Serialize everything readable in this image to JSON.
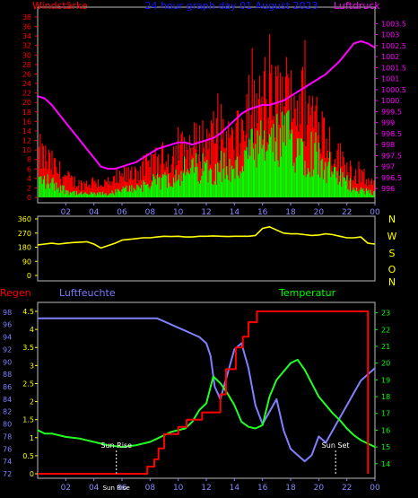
{
  "chart_data": [
    {
      "type": "bar",
      "title": "24 hour graph day  01 August 2023",
      "left_axis_label": "Windstärke",
      "right_axis_label": "Luftdruck",
      "left_ticks": [
        "0",
        "2",
        "4",
        "6",
        "8",
        "10",
        "12",
        "14",
        "16",
        "18",
        "20",
        "22",
        "24",
        "26",
        "28",
        "30",
        "32",
        "34",
        "36",
        "38"
      ],
      "left_range": [
        0,
        38
      ],
      "right_ticks": [
        "996",
        "996.5",
        "997",
        "997.5",
        "998",
        "998.5",
        "999",
        "999.5",
        "1000",
        "1000.5",
        "1001",
        "1001.5",
        "1002",
        "1002.5",
        "1003",
        "1003.5"
      ],
      "right_range": [
        995.6,
        1003.8
      ],
      "x_ticks": [
        "02",
        "04",
        "06",
        "08",
        "10",
        "12",
        "14",
        "16",
        "18",
        "20",
        "22",
        "00"
      ],
      "x_range": [
        0,
        24
      ],
      "series": [
        {
          "name": "Windstärke",
          "color": "#ff0000"
        },
        {
          "name": "Windstärke",
          "color": "#00ff00"
        },
        {
          "name": "Luftdruck",
          "color": "#ff00ff"
        }
      ],
      "gust_envelope": {
        "x": [
          0,
          1,
          2,
          3,
          4,
          5,
          6,
          7,
          8,
          9,
          10,
          11,
          12,
          13,
          14,
          15,
          16,
          17,
          18,
          19,
          20,
          21,
          22,
          23,
          24
        ],
        "y": [
          14,
          10,
          6,
          4,
          5,
          4,
          6,
          8,
          10,
          12,
          14,
          16,
          18,
          20,
          16,
          26,
          28,
          30,
          32,
          28,
          24,
          14,
          10,
          6,
          4
        ]
      },
      "mean_envelope": {
        "x": [
          0,
          1,
          2,
          3,
          4,
          5,
          6,
          7,
          8,
          9,
          10,
          11,
          12,
          13,
          14,
          15,
          16,
          17,
          18,
          19,
          20,
          21,
          22,
          23,
          24
        ],
        "y": [
          5,
          4,
          2,
          1,
          1,
          1,
          2,
          3,
          4,
          5,
          7,
          8,
          8,
          9,
          7,
          12,
          14,
          15,
          17,
          14,
          12,
          7,
          4,
          2,
          1
        ]
      },
      "pressure": {
        "x": [
          0,
          0.5,
          1,
          1.5,
          2,
          2.5,
          3,
          3.5,
          4,
          4.5,
          5,
          5.5,
          6,
          6.5,
          7,
          7.5,
          8,
          8.5,
          9,
          9.5,
          10,
          10.5,
          11,
          11.5,
          12,
          12.5,
          13,
          13.5,
          14,
          14.5,
          15,
          15.5,
          16,
          16.5,
          17,
          17.5,
          18,
          18.5,
          19,
          19.5,
          20,
          20.5,
          21,
          21.5,
          22,
          22.5,
          23,
          23.5,
          24
        ],
        "y": [
          1000.2,
          1000.1,
          999.8,
          999.4,
          999.0,
          998.6,
          998.2,
          997.8,
          997.4,
          997.0,
          996.9,
          996.9,
          997.0,
          997.1,
          997.2,
          997.4,
          997.6,
          997.8,
          997.9,
          998.0,
          998.1,
          998.1,
          998.0,
          998.1,
          998.2,
          998.3,
          998.5,
          998.8,
          999.1,
          999.4,
          999.6,
          999.7,
          999.8,
          999.8,
          999.9,
          1000.0,
          1000.2,
          1000.4,
          1000.6,
          1000.8,
          1001.0,
          1001.2,
          1001.5,
          1001.8,
          1002.2,
          1002.6,
          1002.7,
          1002.6,
          1002.4
        ]
      }
    },
    {
      "type": "line",
      "right_labels": [
        "N",
        "W",
        "S",
        "O",
        "N"
      ],
      "left_ticks": [
        "0",
        "90",
        "180",
        "270",
        "360"
      ],
      "left_range": [
        0,
        360
      ],
      "series": [
        {
          "name": "",
          "color": "#ffff00",
          "x": [
            0,
            0.5,
            1,
            1.5,
            2,
            2.5,
            3,
            3.5,
            4,
            4.5,
            5,
            5.5,
            6,
            6.5,
            7,
            7.5,
            8,
            8.5,
            9,
            9.5,
            10,
            10.5,
            11,
            11.5,
            12,
            12.5,
            13,
            13.5,
            14,
            14.5,
            15,
            15.5,
            16,
            16.5,
            17,
            17.5,
            18,
            18.5,
            19,
            19.5,
            20,
            20.5,
            21,
            21.5,
            22,
            22.5,
            23,
            23.5,
            24
          ],
          "y": [
            195,
            200,
            205,
            200,
            205,
            210,
            212,
            215,
            200,
            175,
            190,
            205,
            225,
            230,
            235,
            240,
            240,
            245,
            250,
            248,
            250,
            245,
            245,
            250,
            250,
            252,
            250,
            248,
            250,
            250,
            250,
            255,
            300,
            310,
            290,
            270,
            265,
            265,
            260,
            255,
            258,
            265,
            260,
            250,
            240,
            240,
            245,
            205,
            200
          ]
        }
      ]
    },
    {
      "type": "line",
      "left_axis_label": "Regen",
      "humidity_axis_label": "Luftfeuchte",
      "right_axis_label": "Temperatur",
      "rain_ticks": [
        "0",
        "0.5",
        "1",
        "1.5",
        "2",
        "2.5",
        "3",
        "3.5",
        "4",
        "4.5"
      ],
      "rain_range": [
        0,
        4.6
      ],
      "humidity_ticks": [
        "72",
        "74",
        "76",
        "78",
        "80",
        "82",
        "84",
        "86",
        "88",
        "90",
        "92",
        "94",
        "96",
        "98"
      ],
      "humidity_range": [
        72,
        98.7
      ],
      "temp_ticks": [
        "14",
        "15",
        "16",
        "17",
        "18",
        "19",
        "20",
        "21",
        "22",
        "23"
      ],
      "temp_range": [
        13.4,
        23.3
      ],
      "x_ticks": [
        "02",
        "04",
        "06",
        "08",
        "10",
        "12",
        "14",
        "16",
        "18",
        "20",
        "22",
        "00"
      ],
      "annotations": [
        {
          "text": "Sun Rise",
          "x": 5.6
        },
        {
          "text": "Sun Set",
          "x": 21.2
        },
        {
          "text": "Sun Rise",
          "x": 5.6
        }
      ],
      "series": [
        {
          "name": "Regen",
          "color": "#ff0000",
          "x": [
            0,
            7.8,
            7.8,
            8.3,
            8.3,
            8.6,
            8.6,
            9,
            9,
            10,
            10,
            10.6,
            10.6,
            11.7,
            11.7,
            13,
            13,
            13.4,
            13.4,
            14.1,
            14.1,
            14.6,
            14.6,
            15,
            15,
            15.6,
            15.6,
            23.5,
            23.5
          ],
          "y": [
            0,
            0,
            0.2,
            0.2,
            0.4,
            0.4,
            0.7,
            0.7,
            1.1,
            1.1,
            1.3,
            1.3,
            1.5,
            1.5,
            1.7,
            1.7,
            2.2,
            2.2,
            2.9,
            2.9,
            3.5,
            3.5,
            3.8,
            3.8,
            4.2,
            4.2,
            4.5,
            4.5,
            0
          ]
        },
        {
          "name": "Luftfeuchte",
          "color": "#8080ff",
          "x": [
            0,
            1,
            2,
            3,
            4,
            5,
            6,
            7,
            8,
            8.5,
            9,
            9.5,
            10,
            10.5,
            11,
            11.5,
            12,
            12.3,
            12.6,
            13,
            13.5,
            14,
            14.5,
            15,
            15.5,
            16,
            16.5,
            17,
            17.5,
            18,
            18.5,
            19,
            19.5,
            20,
            20.5,
            21,
            21.5,
            22,
            22.5,
            23,
            23.5,
            24
          ],
          "y": [
            97,
            97,
            97,
            97,
            97,
            97,
            97,
            97,
            97,
            97,
            96.5,
            96,
            95.5,
            95,
            94.5,
            94,
            93,
            91,
            86,
            84,
            88,
            92,
            93,
            89,
            83,
            80,
            82,
            84,
            79,
            76,
            75,
            74,
            75,
            78,
            77,
            79,
            81,
            83,
            85,
            87,
            88,
            89
          ]
        },
        {
          "name": "Temperatur",
          "color": "#22ff22",
          "x": [
            0,
            0.5,
            1,
            2,
            3,
            4,
            5,
            6,
            7,
            8,
            8.5,
            9,
            9.5,
            10,
            10.5,
            11,
            11.5,
            12,
            12.5,
            13,
            13.5,
            14,
            14.5,
            15,
            15.5,
            16,
            16.5,
            17,
            17.5,
            18,
            18.5,
            19,
            19.5,
            20,
            20.5,
            21,
            21.5,
            22,
            22.5,
            23,
            23.5,
            24
          ],
          "y": [
            16.0,
            15.8,
            15.8,
            15.6,
            15.5,
            15.3,
            15.1,
            15.0,
            15.1,
            15.3,
            15.5,
            15.7,
            15.9,
            16.0,
            16.1,
            16.5,
            17.2,
            17.6,
            19.2,
            18.8,
            18.2,
            17.5,
            16.5,
            16.2,
            16.1,
            16.3,
            18.0,
            19.0,
            19.5,
            20.0,
            20.2,
            19.6,
            18.8,
            18.0,
            17.5,
            17.0,
            16.6,
            16.1,
            15.7,
            15.4,
            15.2,
            15.0
          ]
        }
      ]
    }
  ]
}
